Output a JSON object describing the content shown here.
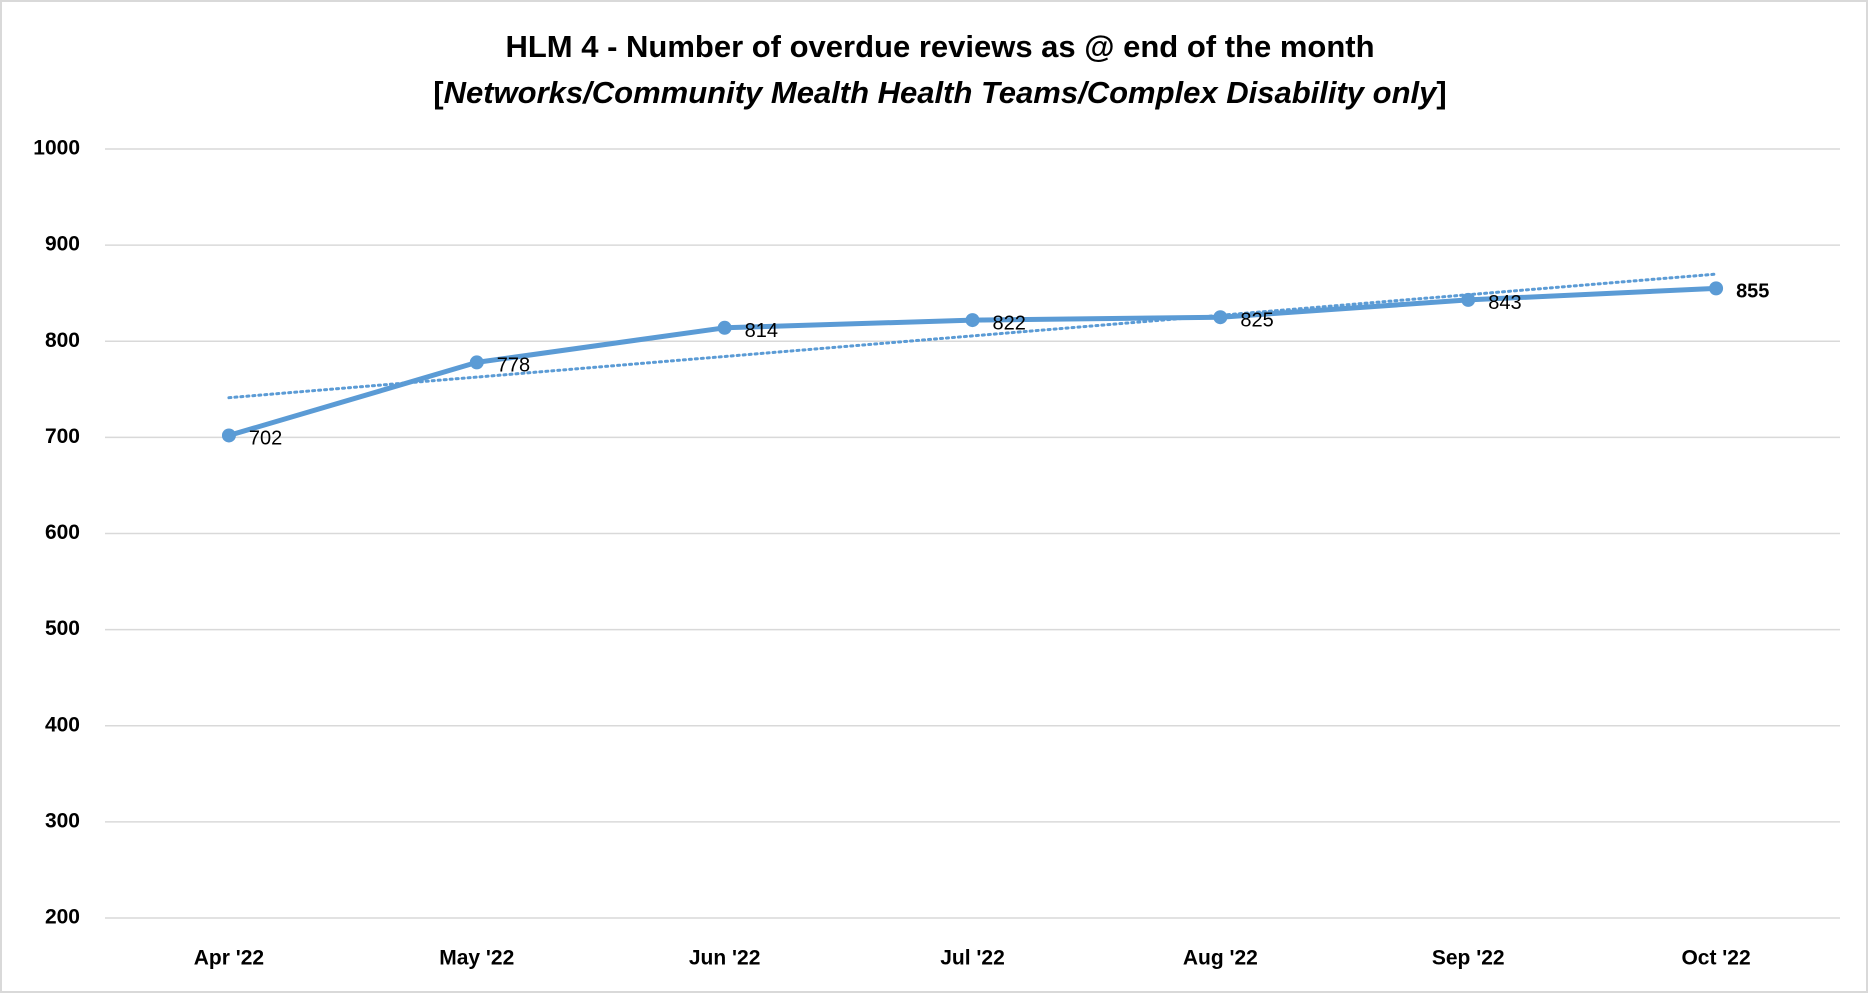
{
  "chart_data": {
    "type": "line",
    "title": "HLM 4 - Number of overdue reviews as @ end of the month",
    "subtitle": [
      "[",
      "Networks/Community Mealth Health Teams/Complex Disability only",
      "]"
    ],
    "categories": [
      "Apr '22",
      "May '22",
      "Jun '22",
      "Jul '22",
      "Aug '22",
      "Sep '22",
      "Oct '22"
    ],
    "series": [
      {
        "name": "Overdue reviews",
        "color": "#5b9bd5",
        "values": [
          702,
          778,
          814,
          822,
          825,
          843,
          855
        ]
      }
    ],
    "trendline": "linear",
    "ylim": [
      200,
      1000
    ],
    "yticks": [
      200,
      300,
      400,
      500,
      600,
      700,
      800,
      900,
      1000
    ],
    "grid": true
  }
}
